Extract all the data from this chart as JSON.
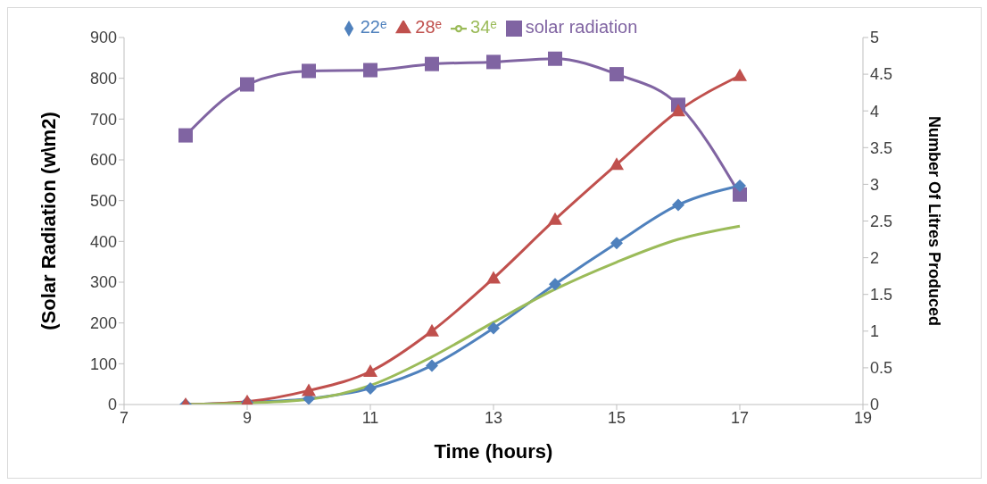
{
  "chart_data": {
    "type": "line",
    "xlabel": "Time  (hours)",
    "ylabel": "(Solar Radiation (w\\m2)",
    "y2label": "Number Of Litres Produced",
    "x": [
      8,
      9,
      10,
      11,
      12,
      13,
      14,
      15,
      16,
      17
    ],
    "series": [
      {
        "name": "solar radiation",
        "color": "#8064a2",
        "marker": "square",
        "values": [
          660,
          785,
          818,
          820,
          835,
          840,
          848,
          810,
          735,
          515
        ]
      },
      {
        "name": "22ᵉ",
        "color": "#4f81bd",
        "marker": "diamond",
        "axis": "y2",
        "values": [
          0,
          0.03,
          0.08,
          0.22,
          0.53,
          1.04,
          1.64,
          2.2,
          2.72,
          2.98
        ]
      },
      {
        "name": "28ᵉ",
        "color": "#c0504d",
        "marker": "triangle",
        "axis": "y2",
        "values": [
          0,
          0.04,
          0.19,
          0.45,
          1.0,
          1.72,
          2.52,
          3.27,
          4.0,
          4.48
        ]
      },
      {
        "name": "34ᵉ",
        "color": "#9bbb59",
        "marker": "none",
        "axis": "y2",
        "values": [
          0,
          0.02,
          0.07,
          0.26,
          0.65,
          1.12,
          1.57,
          1.94,
          2.25,
          2.43
        ]
      }
    ],
    "xlim": [
      7,
      19
    ],
    "xticks": [
      7,
      9,
      11,
      13,
      15,
      17,
      19
    ],
    "ylim": [
      0,
      900
    ],
    "yticks": [
      0,
      100,
      200,
      300,
      400,
      500,
      600,
      700,
      800,
      900
    ],
    "y2lim": [
      0,
      5
    ],
    "y2ticks": [
      0,
      0.5,
      1,
      1.5,
      2,
      2.5,
      3,
      3.5,
      4,
      4.5,
      5
    ],
    "grid": false,
    "legend": "top",
    "line_style": "solid"
  }
}
